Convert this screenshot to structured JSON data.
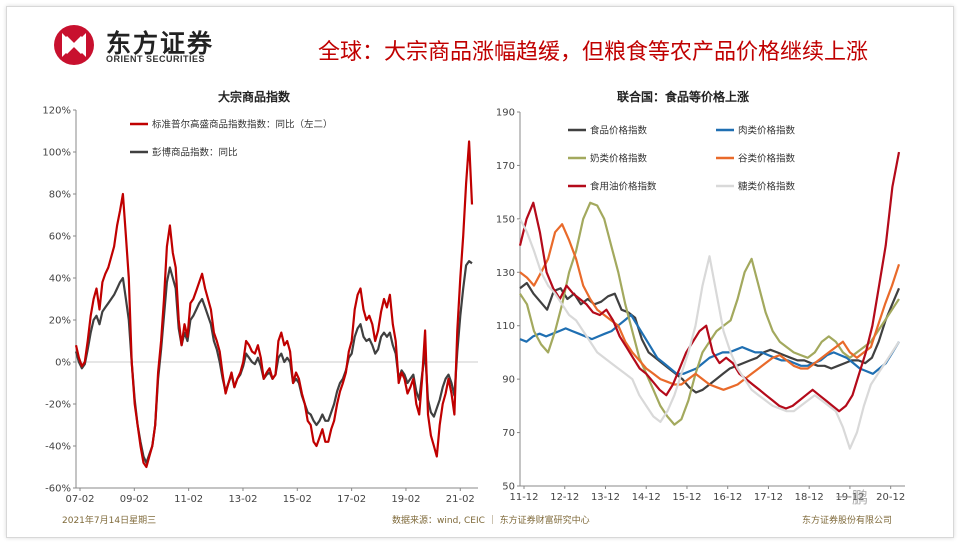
{
  "header": {
    "logo_cn": "东方证券",
    "logo_en": "ORIENT SECURITIES",
    "headline": "全球：大宗商品涨幅趋缓，但粮食等农产品价格继续上涨",
    "logo_color": "#c8102e"
  },
  "footer": {
    "date": "2021年7月14日星期三",
    "source": "数据来源：wind, CEIC ｜ 东方证券财富研究中心",
    "company": "东方证券股份有限公司"
  },
  "watermark": "一鹏",
  "chart_data": [
    {
      "type": "line",
      "title": "大宗商品指数",
      "x_labels": [
        "07-02",
        "09-02",
        "11-02",
        "13-02",
        "15-02",
        "17-02",
        "19-02",
        "21-02"
      ],
      "ylim": [
        -60,
        120
      ],
      "y_ticks": [
        -60,
        -40,
        -20,
        0,
        20,
        40,
        60,
        80,
        100,
        120
      ],
      "y_format": "percent",
      "grid": false,
      "legend": "top-left",
      "series": [
        {
          "name": "标准普尔高盛商品指数指数：同比（左二）",
          "color": "#c00000",
          "values": [
            8,
            2,
            -2,
            0,
            10,
            22,
            30,
            35,
            25,
            38,
            42,
            45,
            50,
            55,
            65,
            72,
            80,
            60,
            40,
            0,
            -20,
            -30,
            -40,
            -48,
            -50,
            -45,
            -40,
            -30,
            -5,
            10,
            30,
            55,
            65,
            52,
            45,
            20,
            8,
            18,
            12,
            28,
            30,
            34,
            38,
            42,
            35,
            30,
            25,
            14,
            10,
            5,
            -6,
            -15,
            -10,
            -5,
            -12,
            -8,
            -5,
            0,
            10,
            8,
            5,
            4,
            8,
            2,
            -8,
            -5,
            -3,
            -8,
            -6,
            10,
            14,
            8,
            10,
            5,
            -10,
            -5,
            -8,
            -15,
            -20,
            -28,
            -30,
            -38,
            -40,
            -36,
            -32,
            -38,
            -38,
            -32,
            -28,
            -20,
            -14,
            -10,
            -5,
            5,
            10,
            25,
            32,
            35,
            25,
            20,
            22,
            18,
            10,
            15,
            24,
            30,
            26,
            32,
            18,
            10,
            -10,
            -5,
            -8,
            -15,
            -12,
            -8,
            -20,
            -25,
            -8,
            15,
            -25,
            -35,
            -40,
            -45,
            -30,
            -20,
            -15,
            -8,
            -15,
            -25,
            15,
            40,
            60,
            85,
            105,
            75
          ]
        },
        {
          "name": "彭博商品指数：同比",
          "color": "#404040",
          "values": [
            5,
            0,
            -3,
            -1,
            6,
            14,
            20,
            22,
            18,
            24,
            26,
            28,
            30,
            32,
            35,
            38,
            40,
            30,
            20,
            0,
            -18,
            -30,
            -38,
            -45,
            -48,
            -44,
            -40,
            -30,
            -8,
            6,
            22,
            38,
            45,
            40,
            35,
            16,
            8,
            14,
            10,
            20,
            22,
            25,
            28,
            30,
            26,
            22,
            18,
            10,
            6,
            0,
            -8,
            -14,
            -10,
            -6,
            -12,
            -8,
            -6,
            -2,
            4,
            2,
            0,
            -1,
            2,
            -2,
            -8,
            -6,
            -5,
            -8,
            -6,
            2,
            4,
            0,
            2,
            0,
            -10,
            -8,
            -10,
            -16,
            -20,
            -24,
            -25,
            -28,
            -30,
            -28,
            -25,
            -28,
            -28,
            -24,
            -20,
            -14,
            -10,
            -8,
            -4,
            2,
            4,
            12,
            16,
            18,
            12,
            10,
            11,
            8,
            4,
            6,
            12,
            14,
            12,
            14,
            8,
            4,
            -8,
            -4,
            -6,
            -10,
            -8,
            -6,
            -14,
            -18,
            -6,
            5,
            -18,
            -24,
            -26,
            -22,
            -18,
            -12,
            -8,
            -6,
            -10,
            -16,
            5,
            22,
            35,
            46,
            48,
            47
          ]
        }
      ]
    },
    {
      "type": "line",
      "title": "联合国：食品等价格上涨",
      "x_labels": [
        "11-12",
        "12-12",
        "13-12",
        "14-12",
        "15-12",
        "16-12",
        "17-12",
        "18-12",
        "19-12",
        "20-12"
      ],
      "ylim": [
        50,
        190
      ],
      "y_ticks": [
        50,
        70,
        90,
        110,
        130,
        150,
        170,
        190
      ],
      "grid": false,
      "legend": "top",
      "series": [
        {
          "name": "食品价格指数",
          "color": "#404040",
          "values": [
            124,
            126,
            122,
            119,
            116,
            123,
            124,
            120,
            122,
            118,
            120,
            118,
            119,
            121,
            122,
            116,
            115,
            113,
            105,
            100,
            98,
            96,
            94,
            92,
            90,
            87,
            85,
            86,
            88,
            90,
            92,
            94,
            95,
            96,
            97,
            98,
            100,
            101,
            100,
            99,
            98,
            97,
            97,
            96,
            95,
            95,
            94,
            95,
            96,
            97,
            97,
            96,
            98,
            104,
            112,
            118,
            124
          ]
        },
        {
          "name": "肉类价格指数",
          "color": "#1f6fb2",
          "values": [
            105,
            104,
            106,
            107,
            106,
            107,
            108,
            109,
            108,
            107,
            106,
            105,
            106,
            107,
            108,
            110,
            112,
            114,
            110,
            106,
            102,
            98,
            96,
            94,
            92,
            92,
            93,
            94,
            96,
            98,
            99,
            100,
            100,
            101,
            102,
            101,
            100,
            100,
            99,
            98,
            97,
            97,
            96,
            95,
            95,
            96,
            97,
            99,
            100,
            99,
            98,
            96,
            94,
            93,
            92,
            94,
            96,
            100,
            104
          ]
        },
        {
          "name": "奶类价格指数",
          "color": "#a3a95e",
          "values": [
            122,
            118,
            108,
            103,
            100,
            108,
            118,
            130,
            138,
            150,
            156,
            155,
            150,
            140,
            130,
            118,
            108,
            98,
            92,
            86,
            80,
            76,
            73,
            75,
            82,
            92,
            100,
            104,
            108,
            110,
            112,
            120,
            130,
            135,
            125,
            115,
            108,
            104,
            102,
            100,
            99,
            98,
            100,
            104,
            106,
            104,
            100,
            98,
            100,
            102,
            104,
            108,
            112,
            116,
            120
          ]
        },
        {
          "name": "谷类价格指数",
          "color": "#e96a2a",
          "values": [
            130,
            128,
            125,
            130,
            135,
            145,
            148,
            142,
            135,
            125,
            120,
            116,
            114,
            112,
            110,
            104,
            100,
            97,
            94,
            92,
            90,
            89,
            88,
            88,
            90,
            92,
            90,
            88,
            87,
            86,
            87,
            88,
            90,
            92,
            94,
            96,
            98,
            99,
            97,
            95,
            94,
            94,
            96,
            98,
            100,
            102,
            104,
            100,
            98,
            100,
            102,
            110,
            118,
            125,
            133
          ]
        },
        {
          "name": "食用油价格指数",
          "color": "#b40a1a",
          "values": [
            140,
            150,
            156,
            145,
            130,
            124,
            120,
            125,
            122,
            120,
            118,
            115,
            114,
            116,
            112,
            106,
            102,
            98,
            94,
            92,
            89,
            86,
            84,
            88,
            94,
            100,
            104,
            108,
            110,
            100,
            96,
            98,
            96,
            92,
            90,
            88,
            86,
            84,
            82,
            80,
            79,
            80,
            82,
            84,
            86,
            84,
            82,
            80,
            78,
            80,
            84,
            92,
            100,
            110,
            125,
            140,
            162,
            175
          ]
        },
        {
          "name": "糖类价格指数",
          "color": "#d9d9d9",
          "values": [
            150,
            145,
            138,
            130,
            125,
            122,
            118,
            114,
            112,
            108,
            104,
            100,
            98,
            96,
            94,
            92,
            90,
            84,
            80,
            76,
            74,
            78,
            84,
            92,
            100,
            110,
            125,
            136,
            122,
            108,
            100,
            94,
            90,
            86,
            84,
            82,
            80,
            79,
            78,
            78,
            80,
            82,
            84,
            82,
            80,
            78,
            72,
            64,
            70,
            80,
            88,
            92,
            96,
            100,
            104
          ]
        }
      ]
    }
  ]
}
